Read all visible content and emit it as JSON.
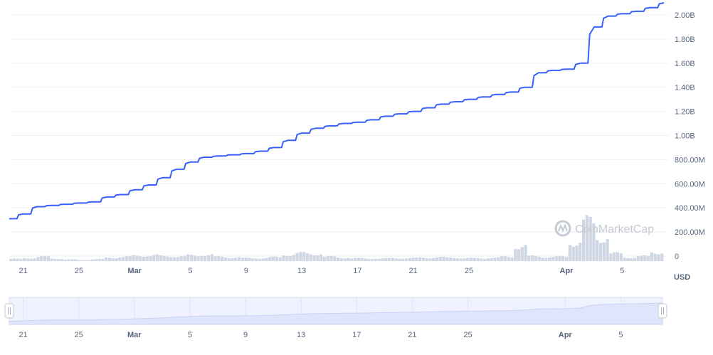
{
  "chart_data": {
    "type": "line",
    "title": "",
    "xlabel": "",
    "ylabel": "",
    "unit_label": "USD",
    "watermark": "CoinMarketCap",
    "ylim": [
      0,
      2100000000
    ],
    "y_ticks": [
      {
        "value": 0,
        "label": "0"
      },
      {
        "value": 200000000,
        "label": "200.00M"
      },
      {
        "value": 400000000,
        "label": "400.00M"
      },
      {
        "value": 600000000,
        "label": "600.00M"
      },
      {
        "value": 800000000,
        "label": "800.00M"
      },
      {
        "value": 1000000000,
        "label": "1.00B"
      },
      {
        "value": 1200000000,
        "label": "1.20B"
      },
      {
        "value": 1400000000,
        "label": "1.40B"
      },
      {
        "value": 1600000000,
        "label": "1.60B"
      },
      {
        "value": 1800000000,
        "label": "1.80B"
      },
      {
        "value": 2000000000,
        "label": "2.00B"
      }
    ],
    "x_range": [
      "2022-02-20",
      "2022-04-08"
    ],
    "x_ticks": [
      {
        "date": "2022-02-21",
        "label": "21",
        "bold": false
      },
      {
        "date": "2022-02-25",
        "label": "25",
        "bold": false
      },
      {
        "date": "2022-03-01",
        "label": "Mar",
        "bold": true
      },
      {
        "date": "2022-03-05",
        "label": "5",
        "bold": false
      },
      {
        "date": "2022-03-09",
        "label": "9",
        "bold": false
      },
      {
        "date": "2022-03-13",
        "label": "13",
        "bold": false
      },
      {
        "date": "2022-03-17",
        "label": "17",
        "bold": false
      },
      {
        "date": "2022-03-21",
        "label": "21",
        "bold": false
      },
      {
        "date": "2022-03-25",
        "label": "25",
        "bold": false
      },
      {
        "date": "2022-04-01",
        "label": "Apr",
        "bold": true
      },
      {
        "date": "2022-04-05",
        "label": "5",
        "bold": false
      }
    ],
    "line_color": "#3861fb",
    "volume_color": "#cfd6e4",
    "series": [
      {
        "values": [
          [
            "2022-02-20",
            310000000
          ],
          [
            "2022-02-21",
            350000000
          ],
          [
            "2022-02-22",
            410000000
          ],
          [
            "2022-02-23",
            420000000
          ],
          [
            "2022-02-24",
            430000000
          ],
          [
            "2022-02-25",
            440000000
          ],
          [
            "2022-02-26",
            450000000
          ],
          [
            "2022-02-27",
            490000000
          ],
          [
            "2022-02-28",
            510000000
          ],
          [
            "2022-03-01",
            550000000
          ],
          [
            "2022-03-02",
            590000000
          ],
          [
            "2022-03-03",
            650000000
          ],
          [
            "2022-03-04",
            720000000
          ],
          [
            "2022-03-05",
            780000000
          ],
          [
            "2022-03-06",
            820000000
          ],
          [
            "2022-03-07",
            830000000
          ],
          [
            "2022-03-08",
            840000000
          ],
          [
            "2022-03-09",
            850000000
          ],
          [
            "2022-03-10",
            870000000
          ],
          [
            "2022-03-11",
            900000000
          ],
          [
            "2022-03-12",
            960000000
          ],
          [
            "2022-03-13",
            1020000000
          ],
          [
            "2022-03-14",
            1060000000
          ],
          [
            "2022-03-15",
            1080000000
          ],
          [
            "2022-03-16",
            1100000000
          ],
          [
            "2022-03-17",
            1110000000
          ],
          [
            "2022-03-18",
            1130000000
          ],
          [
            "2022-03-19",
            1160000000
          ],
          [
            "2022-03-20",
            1180000000
          ],
          [
            "2022-03-21",
            1200000000
          ],
          [
            "2022-03-22",
            1230000000
          ],
          [
            "2022-03-23",
            1260000000
          ],
          [
            "2022-03-24",
            1280000000
          ],
          [
            "2022-03-25",
            1300000000
          ],
          [
            "2022-03-26",
            1320000000
          ],
          [
            "2022-03-27",
            1340000000
          ],
          [
            "2022-03-28",
            1360000000
          ],
          [
            "2022-03-29",
            1400000000
          ],
          [
            "2022-03-30",
            1520000000
          ],
          [
            "2022-03-31",
            1540000000
          ],
          [
            "2022-04-01",
            1550000000
          ],
          [
            "2022-04-02",
            1600000000
          ],
          [
            "2022-04-03",
            1900000000
          ],
          [
            "2022-04-04",
            1990000000
          ],
          [
            "2022-04-05",
            2010000000
          ],
          [
            "2022-04-06",
            2030000000
          ],
          [
            "2022-04-07",
            2060000000
          ],
          [
            "2022-04-08",
            2100000000
          ]
        ]
      }
    ],
    "volume_relative": [
      0.2,
      0.26,
      0.4,
      0.22,
      0.15,
      0.1,
      0.18,
      0.3,
      0.38,
      0.48,
      0.52,
      0.45,
      0.42,
      0.52,
      0.55,
      0.38,
      0.32,
      0.28,
      0.26,
      0.35,
      0.55,
      0.72,
      0.62,
      0.4,
      0.3,
      0.26,
      0.22,
      0.24,
      0.26,
      0.28,
      0.3,
      0.35,
      0.3,
      0.26,
      0.24,
      0.3,
      0.38,
      1.3,
      0.45,
      0.35,
      0.4,
      1.6,
      3.6,
      2.0,
      0.7,
      0.3,
      0.45,
      0.75
    ]
  }
}
